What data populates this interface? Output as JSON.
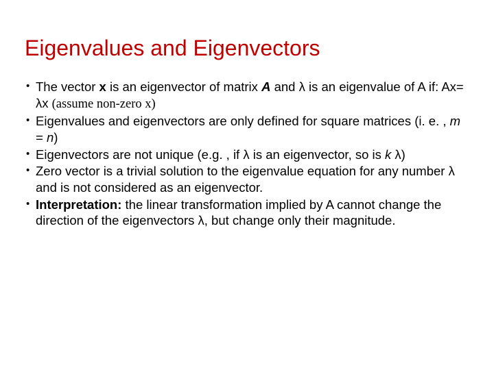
{
  "title": "Eigenvalues and Eigenvectors",
  "bullets": {
    "b1": {
      "p1": "The vector ",
      "x": "x",
      "p2": " is an eigenvector of matrix ",
      "A": "A",
      "p3": " and  λ is an eigenvalue of A if: Ax= λx   ",
      "assume": "(assume non-zero x)"
    },
    "b2": {
      "p1": "Eigenvalues and eigenvectors are only defined for square matrices (i. e. , ",
      "m": "m",
      "eq": " = ",
      "n": "n",
      "p2": ")"
    },
    "b3": {
      "p1": "Eigenvectors are not unique (e.g. , if λ is an eigenvector, so is ",
      "k": "k",
      "p2": " λ)"
    },
    "b4": "Zero vector is a trivial solution to the eigenvalue equation for any number λ and is not considered as an eigenvector.",
    "b5": {
      "label": "Interpretation:",
      "p1": " the linear transformation implied by A cannot change the direction of the eigenvectors λ, but change only their magnitude."
    }
  },
  "colors": {
    "title": "#c00000",
    "text": "#000000",
    "background": "#ffffff"
  },
  "typography": {
    "title_fontsize": 32,
    "body_fontsize": 18.5,
    "title_font": "Arial",
    "body_font": "Arial",
    "serif_font": "Times New Roman"
  }
}
